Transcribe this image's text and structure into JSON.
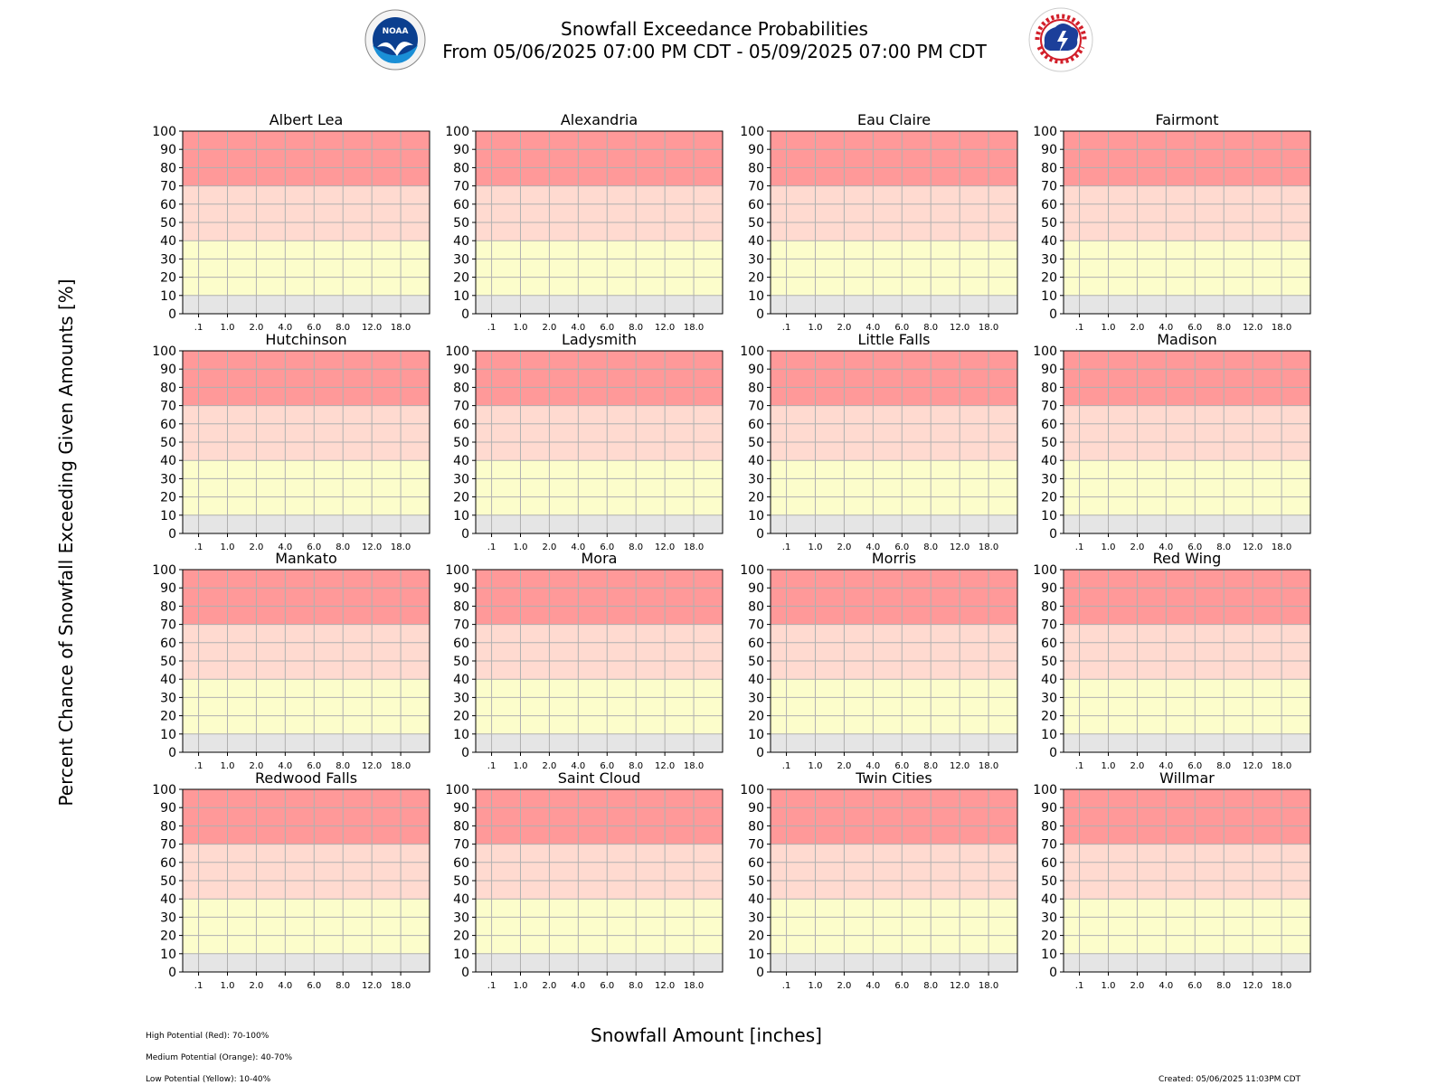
{
  "header": {
    "title_line1": "Snowfall Exceedance Probabilities",
    "title_line2": "From 05/06/2025 07:00 PM CDT - 05/09/2025 07:00 PM CDT"
  },
  "logos": {
    "left": {
      "icon": "noaa-logo",
      "text": "NOAA"
    },
    "right": {
      "icon": "nws-logo",
      "text": "NATIONAL WEATHER SERVICE"
    }
  },
  "axes_text": {
    "ylabel": "Percent Chance of Snowfall Exceeding Given Amounts [%]",
    "xlabel": "Snowfall Amount [inches]"
  },
  "legend_notes": [
    "High Potential (Red): 70-100%",
    "Medium Potential (Orange): 40-70%",
    "Low Potential (Yellow): 10-40%"
  ],
  "created": "Created: 05/06/2025 11:03PM CDT",
  "colors": {
    "high": "#ff9999",
    "medium": "#ffdad0",
    "low": "#fcfdcb",
    "none": "#e5e5e5",
    "grid": "#b0b0b0"
  },
  "chart_data": {
    "type": "line",
    "x_tick_labels": [
      ".1",
      "1.0",
      "2.0",
      "4.0",
      "6.0",
      "8.0",
      "12.0",
      "18.0"
    ],
    "y_ticks": [
      0,
      10,
      20,
      30,
      40,
      50,
      60,
      70,
      80,
      90,
      100
    ],
    "ylim": [
      0,
      100
    ],
    "grid": true,
    "bands": [
      {
        "label": "Low Potential",
        "from": 10,
        "to": 40,
        "color": "#fcfdcb"
      },
      {
        "label": "Medium Potential",
        "from": 40,
        "to": 70,
        "color": "#ffdad0"
      },
      {
        "label": "High Potential",
        "from": 70,
        "to": 100,
        "color": "#ff9999"
      }
    ],
    "panels": [
      {
        "title": "Albert Lea",
        "values": []
      },
      {
        "title": "Alexandria",
        "values": []
      },
      {
        "title": "Eau Claire",
        "values": []
      },
      {
        "title": "Fairmont",
        "values": []
      },
      {
        "title": "Hutchinson",
        "values": []
      },
      {
        "title": "Ladysmith",
        "values": []
      },
      {
        "title": "Little Falls",
        "values": []
      },
      {
        "title": "Madison",
        "values": []
      },
      {
        "title": "Mankato",
        "values": []
      },
      {
        "title": "Mora",
        "values": []
      },
      {
        "title": "Morris",
        "values": []
      },
      {
        "title": "Red Wing",
        "values": []
      },
      {
        "title": "Redwood Falls",
        "values": []
      },
      {
        "title": "Saint Cloud",
        "values": []
      },
      {
        "title": "Twin Cities",
        "values": []
      },
      {
        "title": "Willmar",
        "values": []
      }
    ]
  }
}
